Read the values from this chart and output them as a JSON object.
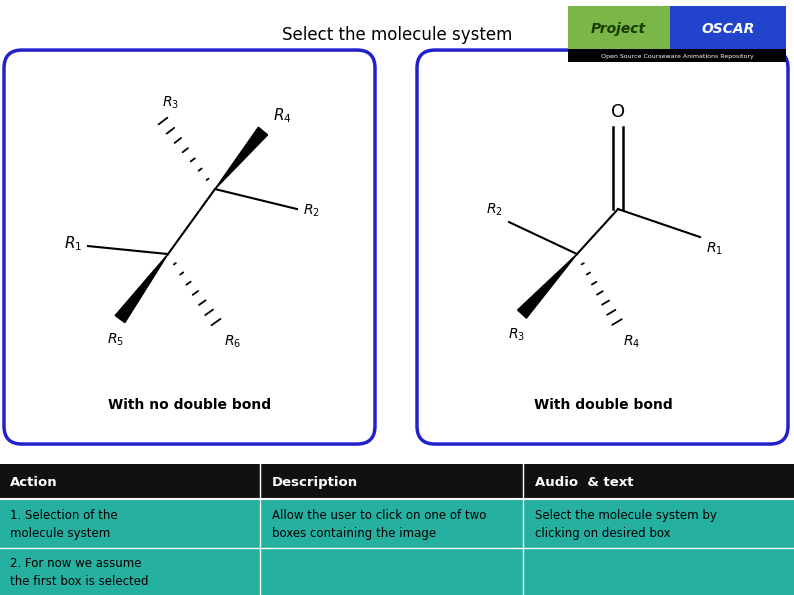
{
  "title": "Select the molecule system",
  "title_fontsize": 12,
  "bg_color": "#ffffff",
  "box1_label": "With no double bond",
  "box2_label": "With double bond",
  "table_header": [
    "Action",
    "Description",
    "Audio  & text"
  ],
  "table_rows": [
    [
      "1. Selection of the\nmolecule system",
      "Allow the user to click on one of two\nboxes containing the image",
      "Select the molecule system by\nclicking on desired box"
    ],
    [
      "2. For now we assume\nthe first box is selected",
      "",
      ""
    ]
  ],
  "header_bg": "#111111",
  "row1_bg": "#26b0a0",
  "row2_bg": "#26b0a0",
  "header_text_color": "#ffffff",
  "row_text_color": "#000000",
  "box_border_color": "#2222cc",
  "oscar_green": "#7ab648",
  "oscar_blue": "#2244cc",
  "logo_text_color": "#1a3a00"
}
